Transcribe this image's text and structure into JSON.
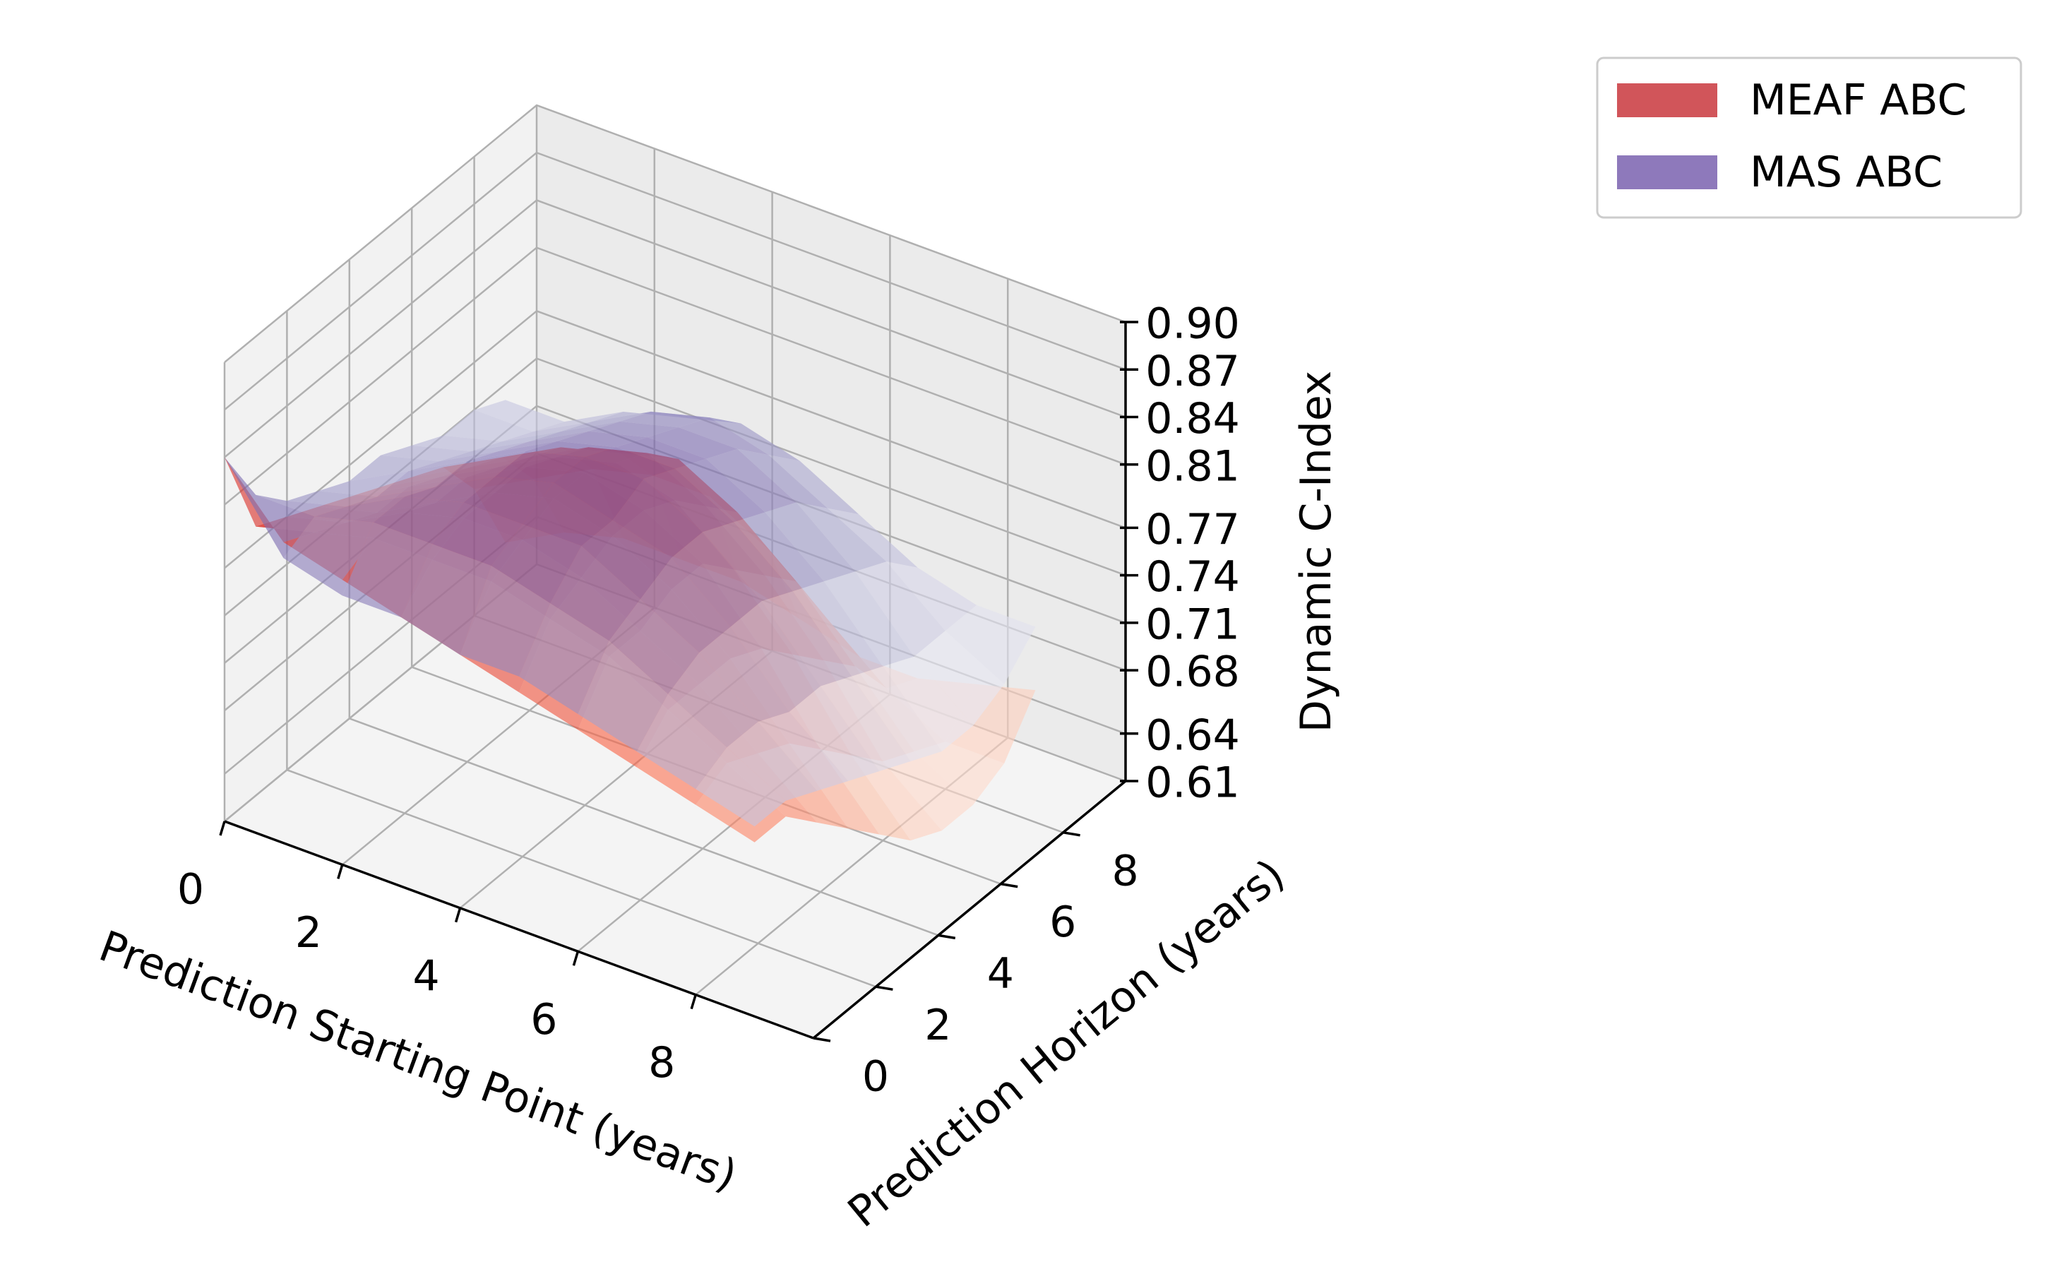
{
  "chart_data": {
    "type": "surface3d",
    "title": "",
    "xlabel": "Prediction Starting Point (years)",
    "ylabel": "Prediction Horizon (years)",
    "zlabel": "Dynamic C-Index",
    "x_ticks": [
      "0",
      "2",
      "4",
      "6",
      "8"
    ],
    "y_ticks": [
      "0",
      "2",
      "4",
      "6",
      "8"
    ],
    "z_ticks": [
      "0.61",
      "0.64",
      "0.68",
      "0.71",
      "0.74",
      "0.77",
      "0.81",
      "0.84",
      "0.87",
      "0.90"
    ],
    "xlim": [
      0,
      10
    ],
    "ylim": [
      0,
      10
    ],
    "zlim": [
      0.61,
      0.9
    ],
    "grid": true,
    "legend_position": "top-right",
    "x": [
      0,
      1,
      2,
      3,
      4,
      5,
      6,
      7,
      8,
      9
    ],
    "y": [
      0,
      1,
      2,
      3,
      4,
      5,
      6,
      7,
      8,
      9
    ],
    "series": [
      {
        "name": "MEAF ABC",
        "color": "#d1555a",
        "colormap": "Reds",
        "values": [
          [
            0.84,
            0.8,
            0.79,
            0.78,
            0.77,
            0.76,
            0.75,
            0.74,
            0.73,
            0.72
          ],
          [
            0.78,
            0.79,
            0.8,
            0.8,
            0.8,
            0.79,
            0.78,
            0.76,
            0.74,
            0.72
          ],
          [
            0.77,
            0.78,
            0.8,
            0.81,
            0.81,
            0.8,
            0.78,
            0.76,
            0.73,
            0.7
          ],
          [
            0.76,
            0.77,
            0.79,
            0.81,
            0.82,
            0.81,
            0.79,
            0.76,
            0.72,
            0.68
          ],
          [
            0.75,
            0.77,
            0.79,
            0.81,
            0.82,
            0.81,
            0.79,
            0.75,
            0.7,
            0.66
          ],
          [
            0.74,
            0.76,
            0.78,
            0.8,
            0.81,
            0.8,
            0.77,
            0.73,
            0.68,
            0.64
          ],
          [
            0.73,
            0.75,
            0.77,
            0.79,
            0.8,
            0.78,
            0.75,
            0.71,
            0.66,
            0.63
          ],
          [
            0.72,
            0.74,
            0.76,
            0.77,
            0.78,
            0.76,
            0.73,
            0.69,
            0.65,
            0.63
          ],
          [
            0.69,
            0.71,
            0.73,
            0.74,
            0.74,
            0.72,
            0.69,
            0.66,
            0.64,
            0.64
          ],
          [
            0.64,
            0.66,
            0.67,
            0.67,
            0.67,
            0.66,
            0.65,
            0.65,
            0.66,
            0.67
          ]
        ]
      },
      {
        "name": "MAS ABC",
        "color": "#8e79bb",
        "colormap": "Purples",
        "values": [
          [
            0.84,
            0.79,
            0.78,
            0.78,
            0.77,
            0.77,
            0.76,
            0.75,
            0.74,
            0.73
          ],
          [
            0.8,
            0.8,
            0.81,
            0.81,
            0.81,
            0.8,
            0.79,
            0.77,
            0.75,
            0.73
          ],
          [
            0.78,
            0.79,
            0.81,
            0.82,
            0.82,
            0.82,
            0.8,
            0.78,
            0.75,
            0.72
          ],
          [
            0.77,
            0.78,
            0.8,
            0.82,
            0.83,
            0.82,
            0.81,
            0.78,
            0.74,
            0.71
          ],
          [
            0.76,
            0.78,
            0.8,
            0.82,
            0.83,
            0.83,
            0.81,
            0.78,
            0.74,
            0.7
          ],
          [
            0.76,
            0.77,
            0.79,
            0.81,
            0.82,
            0.82,
            0.8,
            0.77,
            0.73,
            0.69
          ],
          [
            0.75,
            0.76,
            0.78,
            0.8,
            0.81,
            0.81,
            0.79,
            0.76,
            0.72,
            0.68
          ],
          [
            0.74,
            0.75,
            0.77,
            0.79,
            0.8,
            0.8,
            0.78,
            0.75,
            0.71,
            0.68
          ],
          [
            0.74,
            0.74,
            0.76,
            0.78,
            0.79,
            0.78,
            0.76,
            0.74,
            0.71,
            0.69
          ],
          [
            0.73,
            0.73,
            0.75,
            0.76,
            0.77,
            0.76,
            0.74,
            0.72,
            0.71,
            0.71
          ]
        ]
      }
    ]
  }
}
